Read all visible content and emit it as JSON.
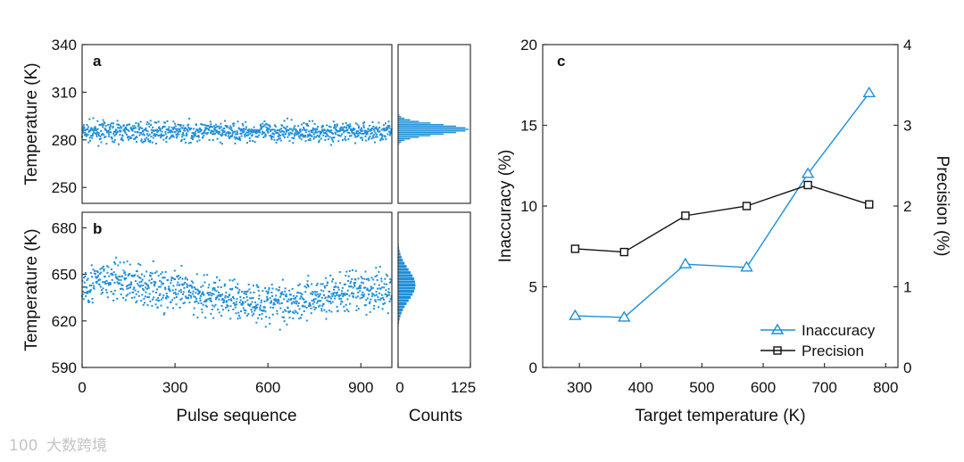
{
  "chart_data": [
    {
      "id": "a",
      "type": "scatter",
      "panel_label": "a",
      "xlabel": "Pulse sequence",
      "ylabel": "Temperature (K)",
      "xlim": [
        0,
        1000
      ],
      "ylim": [
        240,
        340
      ],
      "xticks": [],
      "yticks": [
        250,
        280,
        310,
        340
      ],
      "n_points": 1000,
      "mean": 285,
      "spread": 5.5,
      "color": "#1f8ed8"
    },
    {
      "id": "a-hist",
      "type": "bar",
      "orientation": "horizontal",
      "xlabel": "Counts",
      "xlim": [
        0,
        125
      ],
      "ylim": [
        240,
        340
      ],
      "bin_width": 1,
      "peak_count": 122,
      "peak_value": 286,
      "color": "#1f8ed8"
    },
    {
      "id": "b",
      "type": "scatter",
      "panel_label": "b",
      "xlabel": "Pulse sequence",
      "ylabel": "Temperature (K)",
      "xlim": [
        0,
        1000
      ],
      "ylim": [
        590,
        690
      ],
      "xticks": [
        0,
        300,
        600,
        900
      ],
      "yticks": [
        590,
        620,
        650,
        680
      ],
      "n_points": 1000,
      "mean": 640,
      "spread": 12,
      "color": "#1f8ed8"
    },
    {
      "id": "b-hist",
      "type": "bar",
      "orientation": "horizontal",
      "xlabel": "Counts",
      "xlim": [
        0,
        125
      ],
      "ylim": [
        590,
        690
      ],
      "xticks": [
        0,
        125
      ],
      "bin_width": 2,
      "peak_count": 30,
      "peak_value": 642,
      "color": "#1f8ed8"
    },
    {
      "id": "c",
      "type": "line",
      "panel_label": "c",
      "xlabel": "Target temperature (K)",
      "ylabel": "Inaccuracy (%)",
      "y2label": "Precision (%)",
      "xlim": [
        240,
        820
      ],
      "ylim": [
        0,
        20
      ],
      "y2lim": [
        0,
        4
      ],
      "xticks": [
        300,
        400,
        500,
        600,
        700,
        800
      ],
      "yticks": [
        0,
        5,
        10,
        15,
        20
      ],
      "y2ticks": [
        0,
        1,
        2,
        3,
        4
      ],
      "x": [
        293,
        373,
        473,
        573,
        673,
        773
      ],
      "series": [
        {
          "name": "Inaccuracy",
          "axis": "left",
          "values": [
            3.2,
            3.1,
            6.4,
            6.2,
            12.0,
            17.0
          ],
          "color": "#1f8ed8",
          "marker": "triangle-open"
        },
        {
          "name": "Precision",
          "axis": "right",
          "values": [
            1.47,
            1.43,
            1.88,
            2.0,
            2.26,
            2.02
          ],
          "color": "#111111",
          "marker": "square-open"
        }
      ],
      "legend_position": "bottom-right"
    }
  ],
  "watermark": {
    "text": "大数跨境",
    "logo_text": "100"
  }
}
